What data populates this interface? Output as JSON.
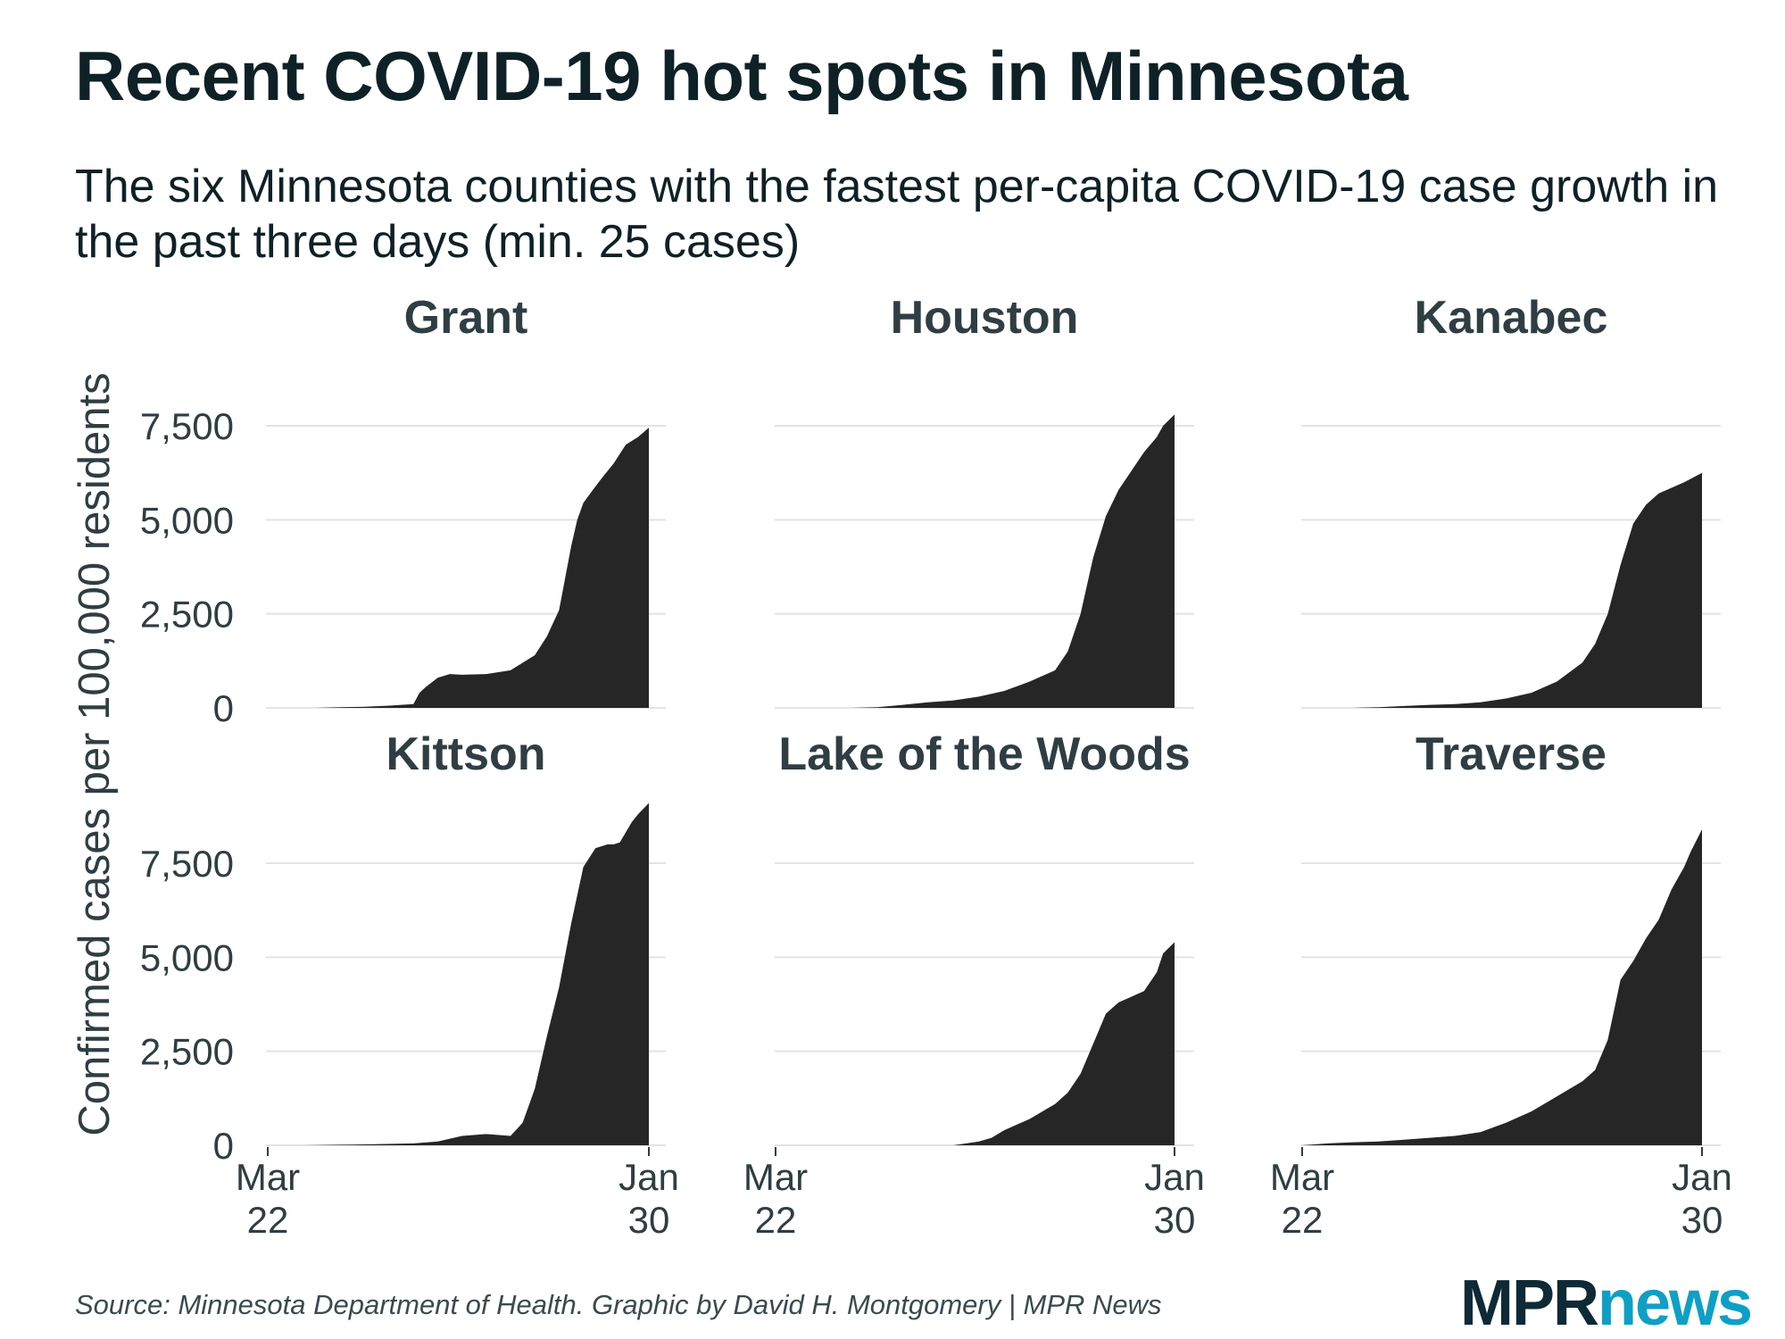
{
  "title": "Recent COVID-19 hot spots in Minnesota",
  "subtitle": "The six Minnesota counties with the fastest per-capita COVID-19 case growth in the past three days (min. 25 cases)",
  "source": "Source: Minnesota Department of Health. Graphic by David H. Montgomery | MPR News",
  "logo": {
    "part1": "MPR",
    "part2": "news"
  },
  "colors": {
    "area": "#262626",
    "grid": "#e3e3e3",
    "text": "#2f3e43",
    "title": "#0e2126",
    "logo_dark": "#0e2a36",
    "logo_accent": "#0f9fc5"
  },
  "chart_data": {
    "type": "area",
    "facet_layout": "2 rows x 3 columns",
    "ylabel": "Confirmed cases per 100,000 residents",
    "ylim": [
      0,
      9000
    ],
    "yticks": [
      0,
      2500,
      5000,
      7500
    ],
    "ytick_labels": [
      "0",
      "2,500",
      "5,000",
      "7,500"
    ],
    "xlim": [
      0,
      314
    ],
    "xticks": [
      0,
      314
    ],
    "xtick_labels": [
      [
        "Mar",
        "22"
      ],
      [
        "Jan",
        "30"
      ]
    ],
    "x_unit": "days since Mar 22",
    "panels": [
      {
        "county": "Grant",
        "x": [
          0,
          40,
          60,
          80,
          100,
          110,
          120,
          125,
          130,
          140,
          150,
          160,
          180,
          200,
          220,
          230,
          240,
          250,
          255,
          260,
          268,
          275,
          285,
          295,
          305,
          314
        ],
        "y": [
          0,
          0,
          20,
          30,
          60,
          80,
          100,
          400,
          550,
          800,
          900,
          880,
          900,
          1000,
          1400,
          1900,
          2600,
          4300,
          5000,
          5450,
          5800,
          6100,
          6500,
          7000,
          7200,
          7450
        ]
      },
      {
        "county": "Houston",
        "x": [
          0,
          60,
          80,
          100,
          120,
          140,
          160,
          180,
          200,
          220,
          230,
          240,
          250,
          260,
          270,
          280,
          290,
          300,
          305,
          314
        ],
        "y": [
          0,
          0,
          20,
          80,
          150,
          200,
          300,
          450,
          700,
          1000,
          1500,
          2500,
          4000,
          5100,
          5800,
          6300,
          6800,
          7200,
          7500,
          7800
        ]
      },
      {
        "county": "Kanabec",
        "x": [
          0,
          40,
          60,
          80,
          100,
          120,
          140,
          160,
          180,
          200,
          220,
          230,
          240,
          250,
          260,
          270,
          280,
          290,
          300,
          314
        ],
        "y": [
          0,
          0,
          20,
          50,
          80,
          100,
          150,
          250,
          400,
          700,
          1200,
          1700,
          2500,
          3800,
          4900,
          5400,
          5700,
          5850,
          6000,
          6250
        ]
      },
      {
        "county": "Kittson",
        "x": [
          0,
          30,
          70,
          120,
          140,
          160,
          180,
          200,
          210,
          220,
          230,
          240,
          250,
          260,
          270,
          280,
          285,
          290,
          300,
          305,
          314
        ],
        "y": [
          0,
          0,
          20,
          50,
          100,
          250,
          300,
          250,
          600,
          1500,
          2900,
          4200,
          5900,
          7400,
          7900,
          8000,
          8000,
          8050,
          8600,
          8800,
          9100
        ]
      },
      {
        "county": "Lake of the Woods",
        "x": [
          0,
          140,
          160,
          170,
          180,
          190,
          200,
          210,
          220,
          230,
          240,
          250,
          260,
          270,
          280,
          290,
          300,
          305,
          314
        ],
        "y": [
          0,
          0,
          100,
          200,
          400,
          550,
          700,
          900,
          1100,
          1400,
          1900,
          2700,
          3500,
          3800,
          3950,
          4100,
          4600,
          5100,
          5400
        ]
      },
      {
        "county": "Traverse",
        "x": [
          0,
          20,
          40,
          60,
          80,
          100,
          120,
          140,
          160,
          180,
          200,
          220,
          230,
          240,
          250,
          260,
          270,
          280,
          290,
          300,
          305,
          314
        ],
        "y": [
          0,
          50,
          80,
          100,
          150,
          200,
          250,
          350,
          600,
          900,
          1300,
          1700,
          2000,
          2800,
          4400,
          4900,
          5500,
          6000,
          6800,
          7400,
          7800,
          8400
        ]
      }
    ]
  }
}
